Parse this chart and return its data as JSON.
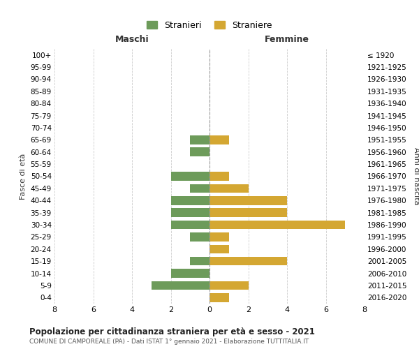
{
  "age_groups": [
    "100+",
    "95-99",
    "90-94",
    "85-89",
    "80-84",
    "75-79",
    "70-74",
    "65-69",
    "60-64",
    "55-59",
    "50-54",
    "45-49",
    "40-44",
    "35-39",
    "30-34",
    "25-29",
    "20-24",
    "15-19",
    "10-14",
    "5-9",
    "0-4"
  ],
  "birth_years": [
    "≤ 1920",
    "1921-1925",
    "1926-1930",
    "1931-1935",
    "1936-1940",
    "1941-1945",
    "1946-1950",
    "1951-1955",
    "1956-1960",
    "1961-1965",
    "1966-1970",
    "1971-1975",
    "1976-1980",
    "1981-1985",
    "1986-1990",
    "1991-1995",
    "1996-2000",
    "2001-2005",
    "2006-2010",
    "2011-2015",
    "2016-2020"
  ],
  "maschi": [
    0,
    0,
    0,
    0,
    0,
    0,
    0,
    1,
    1,
    0,
    2,
    1,
    2,
    2,
    2,
    1,
    0,
    1,
    2,
    3,
    0
  ],
  "femmine": [
    0,
    0,
    0,
    0,
    0,
    0,
    0,
    1,
    0,
    0,
    1,
    2,
    4,
    4,
    7,
    1,
    1,
    4,
    0,
    2,
    1
  ],
  "color_maschi": "#6d9b5a",
  "color_femmine": "#d4a732",
  "title": "Popolazione per cittadinanza straniera per età e sesso - 2021",
  "subtitle": "COMUNE DI CAMPOREALE (PA) - Dati ISTAT 1° gennaio 2021 - Elaborazione TUTTITALIA.IT",
  "xlabel_left": "Maschi",
  "xlabel_right": "Femmine",
  "ylabel_left": "Fasce di età",
  "ylabel_right": "Anni di nascita",
  "legend_maschi": "Stranieri",
  "legend_femmine": "Straniere",
  "xlim": 8,
  "background_color": "#ffffff",
  "grid_color": "#cccccc"
}
